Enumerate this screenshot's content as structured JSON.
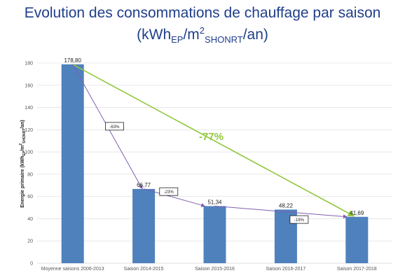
{
  "title": {
    "line1": "Evolution des consommations de chauffage par saison",
    "l2_a": "(kWh",
    "l2_sub1": "EP",
    "l2_b": "/m",
    "l2_sup": "2",
    "l2_sub2": "SHONRT",
    "l2_c": "/an)"
  },
  "chart_data": {
    "type": "bar",
    "categories": [
      "Moyenne saisons 2006-2013",
      "Saison 2014-2015",
      "Saison 2015-2016",
      "Saison 2016-2017",
      "Saison 2017-2018"
    ],
    "values": [
      178.8,
      66.77,
      51.34,
      48.22,
      41.69
    ],
    "value_labels": [
      "178,80",
      "66,77",
      "51,34",
      "48,22",
      "41,69"
    ],
    "ylim": [
      0,
      180
    ],
    "yticks": [
      0,
      20,
      40,
      60,
      80,
      100,
      120,
      140,
      160,
      180
    ],
    "ylabel": {
      "a": "Energie primaire (kWh",
      "sub1": "EP",
      "b": "/m",
      "sup": "2",
      "sub2": "SHONRT",
      "c": "/an)"
    },
    "grid": true,
    "colors": {
      "bar": "#4f81bd",
      "purple": "#7f5fb0",
      "green": "#92c83e",
      "grid": "#d9d9d9"
    },
    "annotations": [
      {
        "label": "-63%",
        "from": 0,
        "to": 1
      },
      {
        "label": "-23%",
        "from": 1,
        "to": 2
      },
      {
        "label": "-19%",
        "from": 2,
        "to": 4
      }
    ],
    "overall": {
      "label": "-77%",
      "from": 0,
      "to": 4
    }
  }
}
